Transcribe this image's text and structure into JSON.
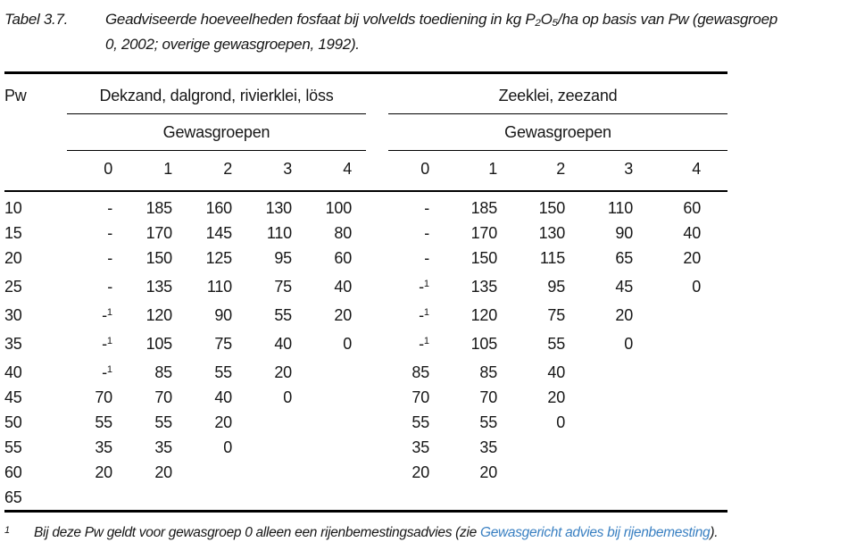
{
  "title": {
    "label": "Tabel 3.7.",
    "lines": [
      "Geadviseerde hoeveelheden fosfaat bij volvelds toediening in kg P₂O₅/ha op basis van Pw (gewasgroep",
      "0, 2002; overige gewasgroepen, 1992)."
    ]
  },
  "table": {
    "pw_header": "Pw",
    "groups": [
      {
        "label": "Dekzand, dalgrond, rivierklei, löss",
        "sub": "Gewasgroepen",
        "cols": [
          "0",
          "1",
          "2",
          "3",
          "4"
        ]
      },
      {
        "label": "Zeeklei, zeezand",
        "sub": "Gewasgroepen",
        "cols": [
          "0",
          "1",
          "2",
          "3",
          "4"
        ]
      }
    ],
    "rows": [
      {
        "pw": "10",
        "left": [
          "-",
          "185",
          "160",
          "130",
          "100"
        ],
        "right": [
          "-",
          "185",
          "150",
          "110",
          "60"
        ]
      },
      {
        "pw": "15",
        "left": [
          "-",
          "170",
          "145",
          "110",
          "80"
        ],
        "right": [
          "-",
          "170",
          "130",
          "90",
          "40"
        ]
      },
      {
        "pw": "20",
        "left": [
          "-",
          "150",
          "125",
          "95",
          "60"
        ],
        "right": [
          "-",
          "150",
          "115",
          "65",
          "20"
        ]
      },
      {
        "pw": "25",
        "left": [
          "-",
          "135",
          "110",
          "75",
          "40"
        ],
        "right": [
          "-^1",
          "135",
          "95",
          "45",
          "0"
        ]
      },
      {
        "pw": "30",
        "left": [
          "-^1",
          "120",
          "90",
          "55",
          "20"
        ],
        "right": [
          "-^1",
          "120",
          "75",
          "20",
          ""
        ]
      },
      {
        "pw": "35",
        "left": [
          "-^1",
          "105",
          "75",
          "40",
          "0"
        ],
        "right": [
          "-^1",
          "105",
          "55",
          "0",
          ""
        ]
      },
      {
        "pw": "40",
        "left": [
          "-^1",
          "85",
          "55",
          "20",
          ""
        ],
        "right": [
          "85",
          "85",
          "40",
          "",
          ""
        ]
      },
      {
        "pw": "45",
        "left": [
          "70",
          "70",
          "40",
          "0",
          ""
        ],
        "right": [
          "70",
          "70",
          "20",
          "",
          ""
        ]
      },
      {
        "pw": "50",
        "left": [
          "55",
          "55",
          "20",
          "",
          ""
        ],
        "right": [
          "55",
          "55",
          "0",
          "",
          ""
        ]
      },
      {
        "pw": "55",
        "left": [
          "35",
          "35",
          "0",
          "",
          ""
        ],
        "right": [
          "35",
          "35",
          "",
          "",
          ""
        ]
      },
      {
        "pw": "60",
        "left": [
          "20",
          "20",
          "",
          "",
          ""
        ],
        "right": [
          "20",
          "20",
          "",
          "",
          ""
        ]
      },
      {
        "pw": "65",
        "left": [
          "",
          "",
          "",
          "",
          ""
        ],
        "right": [
          "",
          "",
          "",
          "",
          ""
        ]
      }
    ]
  },
  "footnote": {
    "marker": "1",
    "pre": "Bij deze Pw geldt voor gewasgroep 0 alleen een rijenbemestingsadvies (zie ",
    "link": "Gewasgericht advies bij rijenbemesting",
    "post": ")."
  },
  "colors": {
    "text": "#171717",
    "rule": "#000000",
    "link": "#3a80c2"
  }
}
